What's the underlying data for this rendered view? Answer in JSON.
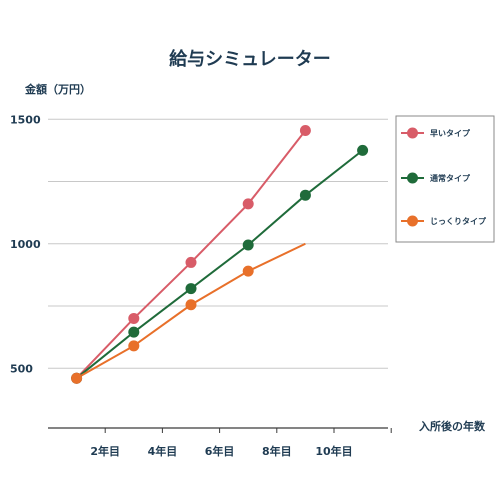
{
  "chart_data": {
    "type": "line",
    "title": "給与シミュレーター",
    "ylabel": "金額（万円）",
    "xlabel": "入所後の年数",
    "x_tick_labels": [
      {
        "x": 2,
        "label": "2年目"
      },
      {
        "x": 4,
        "label": "4年目"
      },
      {
        "x": 6,
        "label": "6年目"
      },
      {
        "x": 8,
        "label": "8年目"
      },
      {
        "x": 10,
        "label": "10年目"
      }
    ],
    "y_ticks": [
      500,
      1000,
      1500
    ],
    "ylim": [
      250,
      1600
    ],
    "xlim": [
      0,
      11.8
    ],
    "grid": true,
    "legend_position": "right",
    "series": [
      {
        "name": "早いタイプ",
        "color": "#d85c68",
        "x": [
          1,
          3,
          5,
          7,
          9
        ],
        "y": [
          460,
          700,
          925,
          1160,
          1455
        ],
        "marker_x": [
          1,
          3,
          5,
          7,
          9
        ],
        "marker_y": [
          460,
          700,
          925,
          1160,
          1455
        ]
      },
      {
        "name": "通常タイプ",
        "color": "#1f6b3a",
        "x": [
          1,
          3,
          5,
          7,
          9,
          11
        ],
        "y": [
          460,
          645,
          820,
          995,
          1195,
          1375
        ],
        "marker_x": [
          1,
          3,
          5,
          7,
          9,
          11
        ],
        "marker_y": [
          460,
          645,
          820,
          995,
          1195,
          1375
        ]
      },
      {
        "name": "じっくりタイプ",
        "color": "#e8702a",
        "x": [
          1,
          3,
          5,
          7,
          9
        ],
        "y": [
          460,
          590,
          755,
          890,
          1000
        ],
        "marker_x": [
          1,
          3,
          5,
          7
        ],
        "marker_y": [
          460,
          590,
          755,
          890
        ]
      }
    ]
  }
}
